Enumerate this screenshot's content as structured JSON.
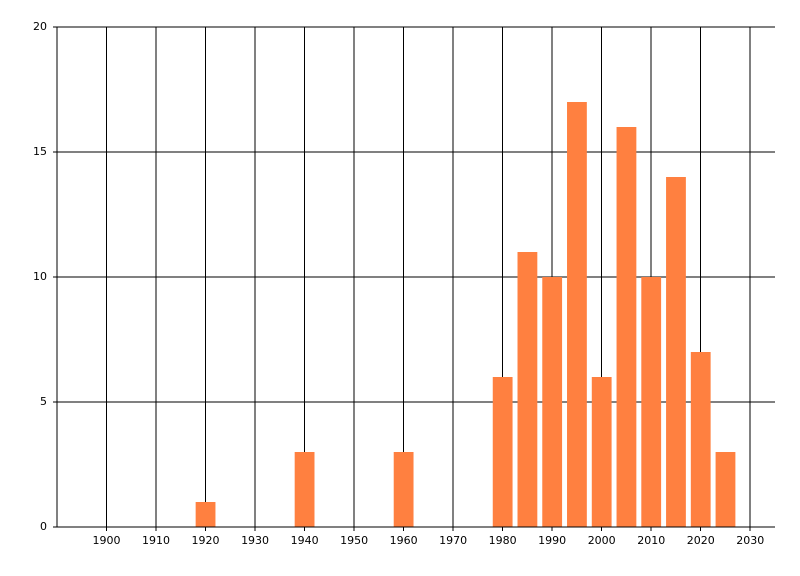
{
  "chart_data": {
    "type": "bar",
    "x": [
      1920,
      1940,
      1960,
      1980,
      1985,
      1990,
      1995,
      2000,
      2005,
      2010,
      2015,
      2020,
      2025
    ],
    "values": [
      1,
      3,
      3,
      6,
      11,
      10,
      17,
      6,
      16,
      10,
      14,
      7,
      3
    ],
    "color": "#ff8040",
    "xlim": [
      1890,
      2035
    ],
    "xticks": [
      1900,
      1910,
      1920,
      1930,
      1940,
      1950,
      1960,
      1970,
      1980,
      1990,
      2000,
      2010,
      2020,
      2030
    ],
    "ylim": [
      0,
      20
    ],
    "yticks": [
      0,
      5,
      10,
      15,
      20
    ],
    "grid": true
  }
}
